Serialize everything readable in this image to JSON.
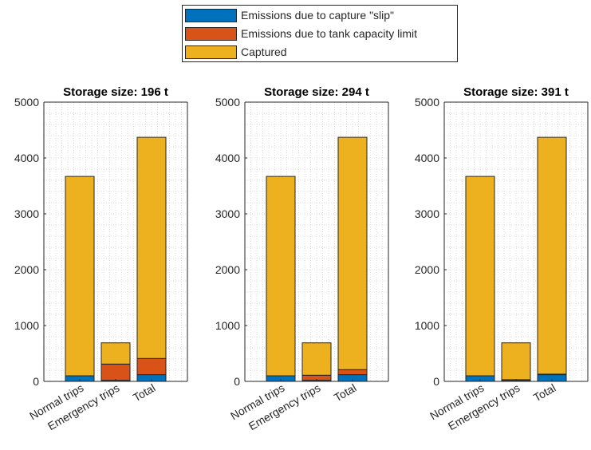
{
  "colors": {
    "slip": "#0072BD",
    "tank_limit": "#D95319",
    "captured": "#EDB120",
    "axis": "#262626",
    "grid": "#d4d4d4",
    "background": "#ffffff"
  },
  "legend": {
    "placement": "top-center",
    "entries": [
      {
        "label": "Emissions due to capture \"slip\"",
        "color": "#0072BD"
      },
      {
        "label": "Emissions due to tank capacity limit",
        "color": "#D95319"
      },
      {
        "label": "Captured",
        "color": "#EDB120"
      }
    ]
  },
  "chart_data": [
    {
      "type": "bar",
      "stacked": true,
      "title": "Storage size: 196 t",
      "categories": [
        "Normal trips",
        "Emergency trips",
        "Total"
      ],
      "yticks": [
        "0",
        "1000",
        "2000",
        "3000",
        "4000",
        "5000"
      ],
      "ylim": [
        0,
        5000
      ],
      "grid": "on (dotted, minor)",
      "series": [
        {
          "name": "Emissions due to capture \"slip\"",
          "values": [
            100,
            20,
            120
          ]
        },
        {
          "name": "Emissions due to tank capacity limit",
          "values": [
            0,
            290,
            290
          ]
        },
        {
          "name": "Captured",
          "values": [
            3570,
            380,
            3960
          ]
        }
      ]
    },
    {
      "type": "bar",
      "stacked": true,
      "title": "Storage size: 294 t",
      "categories": [
        "Normal trips",
        "Emergency trips",
        "Total"
      ],
      "yticks": [
        "0",
        "1000",
        "2000",
        "3000",
        "4000",
        "5000"
      ],
      "ylim": [
        0,
        5000
      ],
      "grid": "on (dotted, minor)",
      "series": [
        {
          "name": "Emissions due to capture \"slip\"",
          "values": [
            100,
            20,
            120
          ]
        },
        {
          "name": "Emissions due to tank capacity limit",
          "values": [
            0,
            90,
            90
          ]
        },
        {
          "name": "Captured",
          "values": [
            3570,
            580,
            4160
          ]
        }
      ]
    },
    {
      "type": "bar",
      "stacked": true,
      "title": "Storage size: 391 t",
      "categories": [
        "Normal trips",
        "Emergency trips",
        "Total"
      ],
      "yticks": [
        "0",
        "1000",
        "2000",
        "3000",
        "4000",
        "5000"
      ],
      "ylim": [
        0,
        5000
      ],
      "grid": "on (dotted, minor)",
      "series": [
        {
          "name": "Emissions due to capture \"slip\"",
          "values": [
            100,
            20,
            120
          ]
        },
        {
          "name": "Emissions due to tank capacity limit",
          "values": [
            0,
            10,
            10
          ]
        },
        {
          "name": "Captured",
          "values": [
            3570,
            660,
            4240
          ]
        }
      ]
    }
  ]
}
